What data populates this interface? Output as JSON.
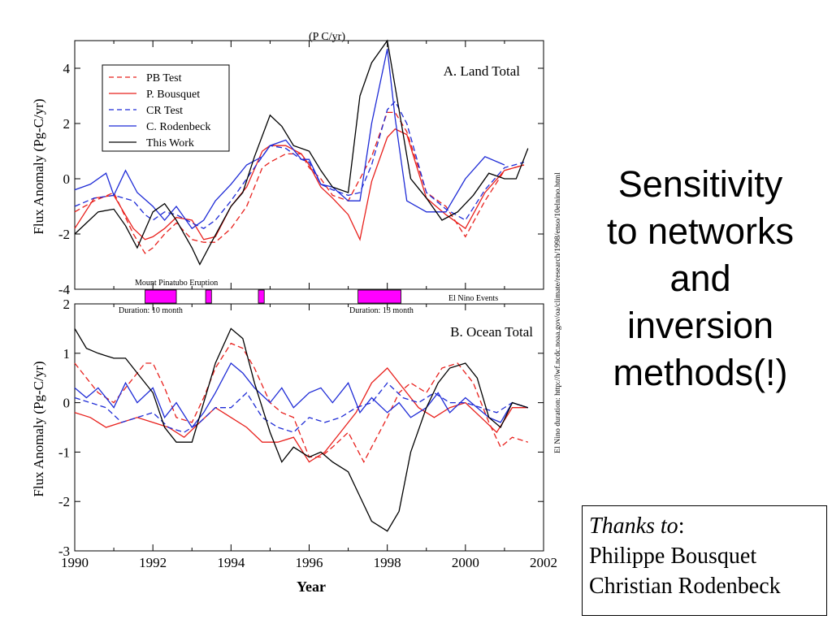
{
  "slide": {
    "title_lines": [
      "Sensitivity",
      "to networks",
      "and",
      "inversion",
      "methods(!)"
    ],
    "thanks": {
      "lead": "Thanks to",
      "colon": ":",
      "names": [
        "Philippe Bousquet",
        "Christian Rodenbeck"
      ]
    }
  },
  "colors": {
    "red": "#e8201c",
    "blue": "#1e2bd6",
    "black": "#000000",
    "magenta": "#ff00ff"
  },
  "chart_data": [
    {
      "type": "line",
      "panel": "top",
      "title": "A. Land Total",
      "clipped_header": "(P     C/yr)",
      "ylabel": "Flux Anomaly (Pg-C/yr)",
      "xlim": [
        1990,
        2002
      ],
      "ylim": [
        -4,
        5
      ],
      "yticks": [
        -4,
        -2,
        0,
        2,
        4
      ],
      "ytick_labels": [
        "-4",
        "-2",
        "0",
        "2",
        "4"
      ],
      "legend": [
        "PB Test",
        "P. Bousquet",
        "CR Test",
        "C. Rodenbeck",
        "This Work"
      ],
      "series": [
        {
          "name": "PB Test",
          "color": "red",
          "dash": true,
          "x": [
            1990,
            1990.5,
            1991,
            1991.5,
            1991.8,
            1992,
            1992.3,
            1992.6,
            1993,
            1993.3,
            1993.6,
            1994,
            1994.4,
            1994.8,
            1995,
            1995.4,
            1995.8,
            1996,
            1996.3,
            1996.6,
            1997,
            1997.3,
            1997.6,
            1998,
            1998.2,
            1998.5,
            1999,
            1999.5,
            2000,
            2000.5,
            2001,
            2001.5
          ],
          "values": [
            -1.2,
            -0.8,
            -0.5,
            -2.0,
            -2.7,
            -2.5,
            -2.0,
            -1.6,
            -2.2,
            -2.3,
            -2.3,
            -1.8,
            -1.0,
            0.4,
            0.6,
            0.9,
            0.9,
            0.4,
            0.0,
            -0.6,
            -0.8,
            0.0,
            0.8,
            2.4,
            2.4,
            1.7,
            -0.5,
            -1.0,
            -2.1,
            -0.8,
            0.3,
            0.5
          ]
        },
        {
          "name": "P. Bousquet",
          "color": "red",
          "dash": false,
          "x": [
            1990,
            1990.5,
            1991,
            1991.5,
            1991.8,
            1992,
            1992.3,
            1992.6,
            1993,
            1993.3,
            1993.6,
            1994,
            1994.4,
            1994.8,
            1995,
            1995.4,
            1995.8,
            1996,
            1996.3,
            1996.6,
            1997,
            1997.3,
            1997.6,
            1998,
            1998.2,
            1998.5,
            1999,
            1999.5,
            2000,
            2000.5,
            2001,
            2001.5
          ],
          "values": [
            -1.8,
            -0.7,
            -0.6,
            -1.8,
            -2.2,
            -2.1,
            -1.8,
            -1.4,
            -1.5,
            -2.2,
            -2.1,
            -1.0,
            -0.3,
            1.0,
            1.2,
            1.2,
            0.9,
            0.5,
            -0.3,
            -0.7,
            -1.3,
            -2.2,
            -0.1,
            1.5,
            1.8,
            1.6,
            -0.7,
            -1.3,
            -1.8,
            -0.5,
            0.3,
            0.5
          ]
        },
        {
          "name": "CR Test",
          "color": "blue",
          "dash": true,
          "x": [
            1990,
            1990.5,
            1991,
            1991.5,
            1991.8,
            1992,
            1992.3,
            1992.6,
            1993,
            1993.3,
            1993.6,
            1994,
            1994.4,
            1994.8,
            1995,
            1995.4,
            1995.8,
            1996,
            1996.3,
            1996.6,
            1997,
            1997.3,
            1997.6,
            1998,
            1998.2,
            1998.5,
            1999,
            1999.5,
            2000,
            2000.5,
            2001,
            2001.5
          ],
          "values": [
            -1.0,
            -0.7,
            -0.6,
            -0.8,
            -1.3,
            -1.5,
            -1.2,
            -1.3,
            -1.6,
            -1.8,
            -1.5,
            -0.8,
            0.0,
            0.8,
            1.2,
            1.1,
            0.7,
            0.6,
            -0.2,
            -0.4,
            -0.6,
            -0.5,
            0.5,
            2.5,
            2.8,
            2.0,
            -0.5,
            -1.1,
            -1.5,
            -0.4,
            0.4,
            0.6
          ]
        },
        {
          "name": "C. Rodenbeck",
          "color": "blue",
          "dash": false,
          "x": [
            1990,
            1990.4,
            1990.8,
            1991,
            1991.3,
            1991.6,
            1992,
            1992.3,
            1992.6,
            1993,
            1993.3,
            1993.6,
            1994,
            1994.4,
            1994.8,
            1995,
            1995.4,
            1995.8,
            1996,
            1996.3,
            1996.6,
            1997,
            1997.3,
            1997.6,
            1998,
            1998.2,
            1998.5,
            1999,
            1999.5,
            2000,
            2000.5,
            2001
          ],
          "values": [
            -0.4,
            -0.2,
            0.2,
            -0.6,
            0.3,
            -0.5,
            -1.0,
            -1.5,
            -1.0,
            -1.8,
            -1.5,
            -0.8,
            -0.2,
            0.5,
            0.8,
            1.2,
            1.4,
            0.7,
            0.7,
            -0.2,
            -0.3,
            -0.8,
            -0.8,
            2.0,
            4.7,
            2.2,
            -0.8,
            -1.2,
            -1.2,
            0.0,
            0.8,
            0.5
          ]
        },
        {
          "name": "This Work",
          "color": "black",
          "dash": false,
          "x": [
            1990,
            1990.3,
            1990.6,
            1991,
            1991.3,
            1991.6,
            1992,
            1992.3,
            1992.6,
            1993,
            1993.2,
            1993.5,
            1994,
            1994.3,
            1994.6,
            1995,
            1995.3,
            1995.6,
            1996,
            1996.3,
            1996.6,
            1997,
            1997.3,
            1997.6,
            1998,
            1998.3,
            1998.6,
            1999,
            1999.4,
            1999.8,
            2000.2,
            2000.6,
            2001,
            2001.3,
            2001.6
          ],
          "values": [
            -2.0,
            -1.6,
            -1.2,
            -1.1,
            -1.7,
            -2.5,
            -1.2,
            -0.9,
            -1.5,
            -2.5,
            -3.1,
            -2.3,
            -1.0,
            -0.5,
            0.8,
            2.3,
            1.9,
            1.2,
            1.0,
            0.3,
            -0.3,
            -0.5,
            3.0,
            4.2,
            5.0,
            2.5,
            0.0,
            -0.7,
            -1.5,
            -1.2,
            -0.6,
            0.2,
            0.0,
            0.0,
            1.1
          ]
        }
      ]
    },
    {
      "type": "line",
      "panel": "bottom",
      "title": "B. Ocean Total",
      "xlabel": "Year",
      "ylabel": "Flux Anomaly (Pg-C/yr)",
      "xlim": [
        1990,
        2002
      ],
      "ylim": [
        -3,
        2
      ],
      "xticks": [
        1990,
        1992,
        1994,
        1996,
        1998,
        2000,
        2002
      ],
      "xtick_labels": [
        "1990",
        "1992",
        "1994",
        "1996",
        "1998",
        "2000",
        "2002"
      ],
      "yticks": [
        -3,
        -2,
        -1,
        0,
        1,
        2
      ],
      "ytick_labels": [
        "-3",
        "-2",
        "-1",
        "0",
        "1",
        "2"
      ],
      "series": [
        {
          "name": "PB Test",
          "color": "red",
          "dash": true,
          "x": [
            1990,
            1990.3,
            1990.6,
            1991,
            1991.4,
            1991.8,
            1992,
            1992.3,
            1992.6,
            1993,
            1993.3,
            1993.6,
            1994,
            1994.3,
            1994.6,
            1995,
            1995.3,
            1995.6,
            1996,
            1996.3,
            1996.6,
            1997,
            1997.4,
            1997.8,
            1998,
            1998.3,
            1998.6,
            1999,
            1999.4,
            1999.8,
            2000.2,
            2000.6,
            2000.9,
            2001.2,
            2001.6
          ],
          "values": [
            0.8,
            0.5,
            0.2,
            0.0,
            0.4,
            0.8,
            0.8,
            0.3,
            -0.3,
            -0.4,
            0.1,
            0.7,
            1.2,
            1.1,
            0.7,
            0.0,
            -0.2,
            -0.3,
            -1.1,
            -1.1,
            -0.9,
            -0.6,
            -1.2,
            -0.6,
            -0.3,
            0.2,
            0.4,
            0.2,
            0.7,
            0.8,
            0.4,
            -0.4,
            -0.9,
            -0.7,
            -0.8
          ]
        },
        {
          "name": "P. Bousquet",
          "color": "red",
          "dash": false,
          "x": [
            1990,
            1990.4,
            1990.8,
            1991.2,
            1991.6,
            1992,
            1992.4,
            1992.8,
            1993.2,
            1993.6,
            1994,
            1994.4,
            1994.8,
            1995.2,
            1995.6,
            1996,
            1996.4,
            1996.8,
            1997.2,
            1997.6,
            1998,
            1998.4,
            1998.8,
            1999.2,
            1999.6,
            2000,
            2000.4,
            2000.8,
            2001.2,
            2001.6
          ],
          "values": [
            -0.2,
            -0.3,
            -0.5,
            -0.4,
            -0.3,
            -0.4,
            -0.5,
            -0.7,
            -0.4,
            -0.1,
            -0.3,
            -0.5,
            -0.8,
            -0.8,
            -0.7,
            -1.2,
            -1.0,
            -0.6,
            -0.2,
            0.4,
            0.7,
            0.3,
            -0.1,
            -0.3,
            -0.1,
            0.0,
            -0.3,
            -0.6,
            -0.1,
            -0.1
          ]
        },
        {
          "name": "CR Test",
          "color": "blue",
          "dash": true,
          "x": [
            1990,
            1990.4,
            1990.8,
            1991.2,
            1991.6,
            1992,
            1992.4,
            1992.8,
            1993.2,
            1993.6,
            1994,
            1994.4,
            1994.8,
            1995.2,
            1995.6,
            1996,
            1996.4,
            1996.8,
            1997.2,
            1997.6,
            1998,
            1998.4,
            1998.8,
            1999.2,
            1999.6,
            2000,
            2000.4,
            2000.8,
            2001.2,
            2001.6
          ],
          "values": [
            0.1,
            0.0,
            -0.1,
            -0.4,
            -0.3,
            -0.2,
            -0.5,
            -0.6,
            -0.4,
            -0.1,
            -0.1,
            0.2,
            -0.3,
            -0.5,
            -0.6,
            -0.3,
            -0.4,
            -0.3,
            -0.1,
            0.0,
            0.4,
            0.1,
            0.0,
            0.2,
            0.0,
            0.0,
            -0.1,
            -0.2,
            0.0,
            -0.1
          ]
        },
        {
          "name": "C. Rodenbeck",
          "color": "blue",
          "dash": false,
          "x": [
            1990,
            1990.3,
            1990.6,
            1991,
            1991.3,
            1991.6,
            1992,
            1992.3,
            1992.6,
            1993,
            1993.3,
            1993.6,
            1994,
            1994.3,
            1994.6,
            1995,
            1995.3,
            1995.6,
            1996,
            1996.3,
            1996.6,
            1997,
            1997.3,
            1997.6,
            1998,
            1998.3,
            1998.6,
            1999,
            1999.3,
            1999.6,
            2000,
            2000.3,
            2000.6,
            2000.9,
            2001.2,
            2001.6
          ],
          "values": [
            0.3,
            0.1,
            0.3,
            -0.1,
            0.4,
            0.0,
            0.3,
            -0.3,
            0.0,
            -0.5,
            -0.2,
            0.2,
            0.8,
            0.6,
            0.3,
            0.0,
            0.3,
            -0.1,
            0.2,
            0.3,
            0.0,
            0.4,
            -0.2,
            0.1,
            -0.2,
            0.0,
            -0.3,
            -0.1,
            0.2,
            -0.2,
            0.1,
            -0.1,
            -0.3,
            -0.4,
            0.0,
            -0.1
          ]
        },
        {
          "name": "This Work",
          "color": "black",
          "dash": false,
          "x": [
            1990,
            1990.3,
            1990.6,
            1991,
            1991.3,
            1991.6,
            1992,
            1992.3,
            1992.6,
            1993,
            1993.3,
            1993.6,
            1994,
            1994.3,
            1994.6,
            1995,
            1995.3,
            1995.6,
            1996,
            1996.3,
            1996.6,
            1997,
            1997.3,
            1997.6,
            1998,
            1998.3,
            1998.6,
            1999,
            1999.3,
            1999.6,
            2000,
            2000.3,
            2000.6,
            2000.9,
            2001.2,
            2001.6
          ],
          "values": [
            1.5,
            1.1,
            1.0,
            0.9,
            0.9,
            0.6,
            0.2,
            -0.5,
            -0.8,
            -0.8,
            0.0,
            0.8,
            1.5,
            1.3,
            0.4,
            -0.6,
            -1.2,
            -0.9,
            -1.1,
            -1.0,
            -1.2,
            -1.4,
            -1.9,
            -2.4,
            -2.6,
            -2.2,
            -1.0,
            -0.1,
            0.4,
            0.7,
            0.8,
            0.5,
            -0.3,
            -0.5,
            0.0,
            -0.1
          ]
        }
      ]
    }
  ],
  "enso": {
    "labels": {
      "pinatubo": "Mount Pinatubo Eruption",
      "dur1": "Duration: 10 month",
      "dur2": "Duration: 13 month",
      "events": "El Nino Events"
    },
    "events": [
      {
        "start": 1991.8,
        "end": 1992.6
      },
      {
        "start": 1993.35,
        "end": 1993.5
      },
      {
        "start": 1994.7,
        "end": 1994.85
      },
      {
        "start": 1997.25,
        "end": 1998.35
      }
    ],
    "side_note": "El Nino duration: http://lwf.ncdc.noaa.gov/oa/climate/research/1998/enso/10elnino.html"
  }
}
